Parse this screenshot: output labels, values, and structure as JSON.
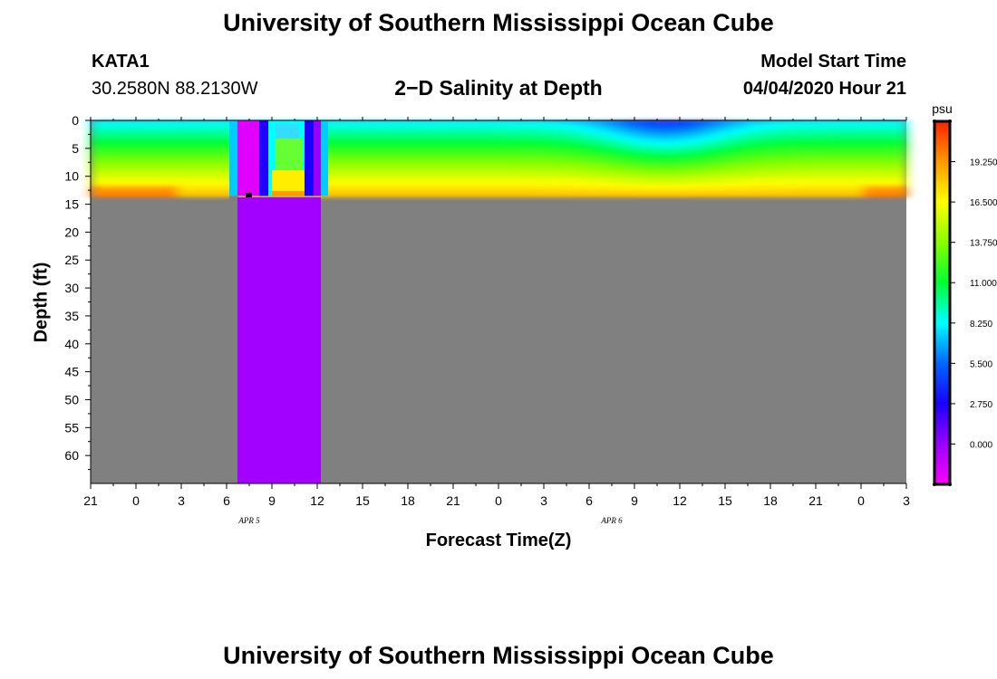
{
  "header": {
    "title": "University of Southern Mississippi Ocean Cube",
    "station": "KATA1",
    "coords": "30.2580N 88.2130W",
    "model_start_label": "Model Start Time",
    "model_start_value": "04/04/2020 Hour 21"
  },
  "footer": {
    "title": "University of Southern Mississippi Ocean Cube"
  },
  "chart_data": {
    "type": "heatmap",
    "title": "2−D Salinity at Depth",
    "xlabel": "Forecast Time(Z)",
    "ylabel": "Depth (ft)",
    "x_tick_labels": [
      "21",
      "0",
      "3",
      "6",
      "9",
      "12",
      "15",
      "18",
      "21",
      "0",
      "3",
      "6",
      "9",
      "12",
      "15",
      "18",
      "21",
      "0",
      "3"
    ],
    "x_date_labels": [
      {
        "label": "APR 5",
        "at_tick": 3.5
      },
      {
        "label": "APR 6",
        "at_tick": 11.5
      }
    ],
    "y_tick_labels": [
      "0",
      "5",
      "10",
      "15",
      "20",
      "25",
      "30",
      "35",
      "40",
      "45",
      "50",
      "55",
      "60"
    ],
    "ylim": [
      0,
      65
    ],
    "valid_depth_max_ft": 13.5,
    "colorbar": {
      "unit": "psu",
      "tick_labels": [
        "19.250",
        "16.500",
        "13.750",
        "11.000",
        "8.250",
        "5.500",
        "2.750",
        "0.000"
      ],
      "colors": [
        "#ff00ff",
        "#9900ff",
        "#1a00ff",
        "#0066ff",
        "#00ffff",
        "#00ff33",
        "#88ff00",
        "#ffff00",
        "#ff9900",
        "#ff2200"
      ]
    },
    "colors": {
      "land_mask": "#808080",
      "masked_column": "#a200ff"
    }
  }
}
